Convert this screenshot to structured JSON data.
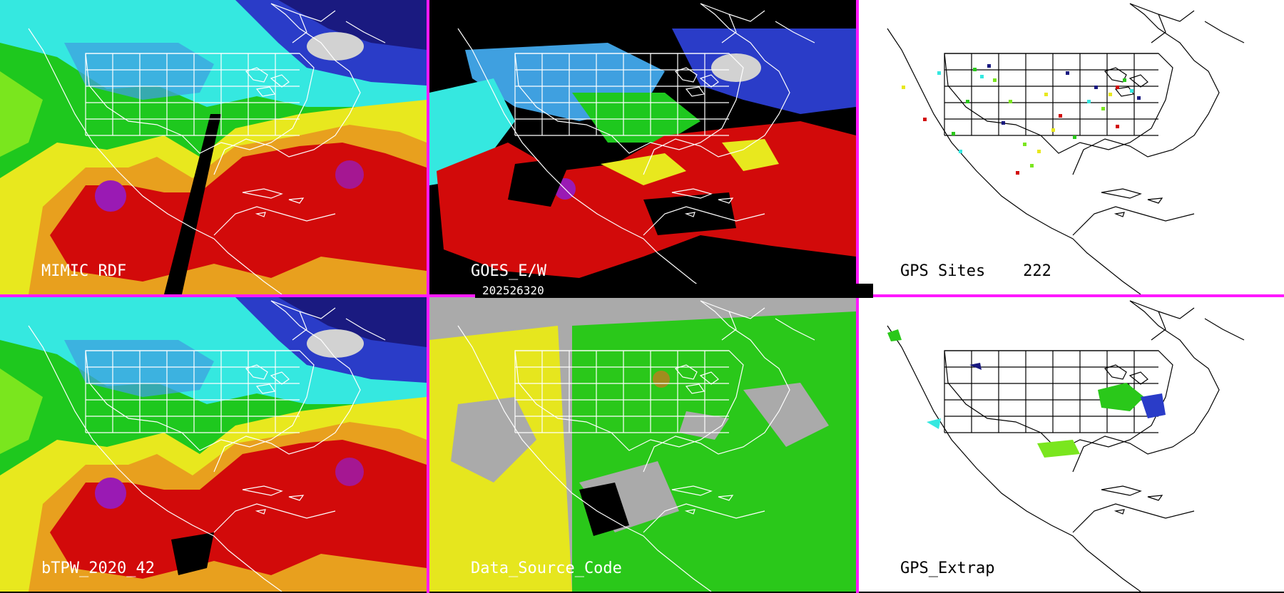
{
  "timestamp": "202526320",
  "panels": [
    {
      "label": "MIMIC RDF",
      "kind": "tpw"
    },
    {
      "label": "GOES_E/W",
      "kind": "goes"
    },
    {
      "label": "GPS Sites    222",
      "kind": "sites"
    },
    {
      "label": "bTPW_2020_42",
      "kind": "tpw"
    },
    {
      "label": "Data_Source_Code",
      "kind": "source"
    },
    {
      "label": "GPS_Extrap",
      "kind": "extrap"
    }
  ],
  "colors": {
    "divider": "#ff19ff",
    "tpw_scale": [
      "#1a1a80",
      "#2a3cc8",
      "#3fa0e0",
      "#35e8e0",
      "#1ec81e",
      "#7ae61e",
      "#e8e81e",
      "#e8a01e",
      "#d20a0a",
      "#9a1ab4"
    ],
    "source_yellow": "#e6e61e",
    "source_green": "#2ac81a",
    "source_gray": "#aaaaaa"
  }
}
